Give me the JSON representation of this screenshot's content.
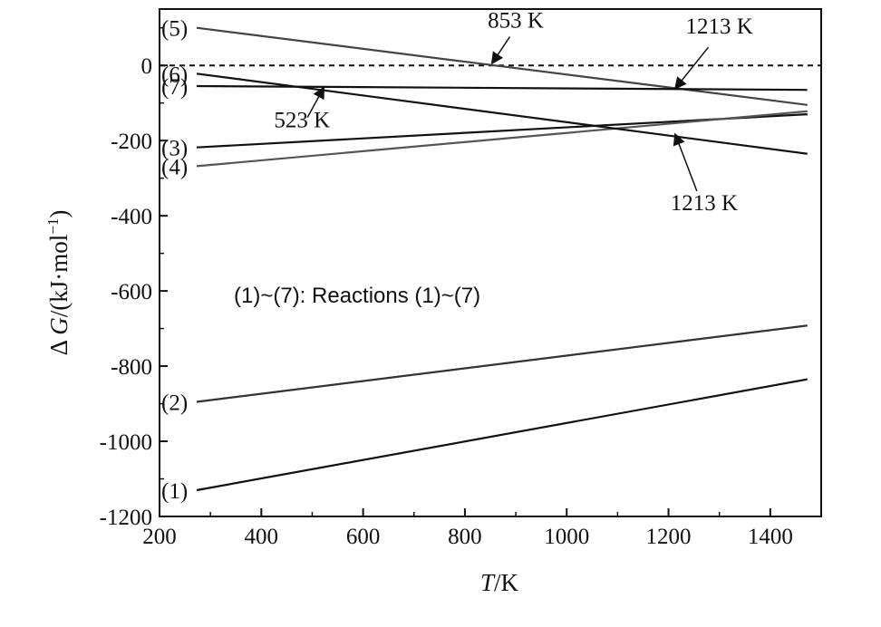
{
  "chart_data": {
    "type": "line",
    "xlabel_italic": "T",
    "xlabel_unit": "/K",
    "ylabel_prefix": "Δ ",
    "ylabel_italic": "G",
    "ylabel_unit": "/(kJ·mol",
    "ylabel_sup": "−1",
    "ylabel_close": ")",
    "xlim": [
      200,
      1500
    ],
    "ylim": [
      -1200,
      150
    ],
    "x_ticks": [
      200,
      400,
      600,
      800,
      1000,
      1200,
      1400
    ],
    "y_ticks": [
      0,
      -200,
      -400,
      -600,
      -800,
      -1000,
      -1200
    ],
    "x_tick_labels": [
      "200",
      "400",
      "600",
      "800",
      "1000",
      "1200",
      "1400"
    ],
    "y_tick_labels": [
      "0",
      "-200",
      "-400",
      "-600",
      "-800",
      "-1000",
      "-1200"
    ],
    "zero_line": {
      "y": 0,
      "style": "dashed"
    },
    "series": [
      {
        "name": "(1)",
        "x": [
          273,
          1473
        ],
        "y": [
          -1130,
          -835
        ],
        "color": "#111111"
      },
      {
        "name": "(2)",
        "x": [
          273,
          1473
        ],
        "y": [
          -895,
          -692
        ],
        "color": "#333333"
      },
      {
        "name": "(3)",
        "x": [
          273,
          1473
        ],
        "y": [
          -218,
          -130
        ],
        "color": "#111111"
      },
      {
        "name": "(4)",
        "x": [
          273,
          1473
        ],
        "y": [
          -268,
          -122
        ],
        "color": "#555555"
      },
      {
        "name": "(5)",
        "x": [
          273,
          1473
        ],
        "y": [
          100,
          -105
        ],
        "color": "#444444"
      },
      {
        "name": "(6)",
        "x": [
          273,
          1473
        ],
        "y": [
          -22,
          -235
        ],
        "color": "#111111"
      },
      {
        "name": "(7)",
        "x": [
          273,
          1473
        ],
        "y": [
          -55,
          -65
        ],
        "color": "#111111"
      }
    ],
    "annotations": [
      {
        "text": "853 K",
        "x": 853,
        "y": 5,
        "label_x": 900,
        "label_y": 100
      },
      {
        "text": "1213 K",
        "x": 1213,
        "y": -62,
        "label_x": 1300,
        "label_y": 85
      },
      {
        "text": "523 K",
        "x": 523,
        "y": -58,
        "label_x": 480,
        "label_y": -165
      },
      {
        "text": "1213 K",
        "x": 1213,
        "y": -182,
        "label_x": 1270,
        "label_y": -385
      }
    ],
    "legend_note": "(1)~(7): Reactions (1)~(7)",
    "grid": false
  }
}
